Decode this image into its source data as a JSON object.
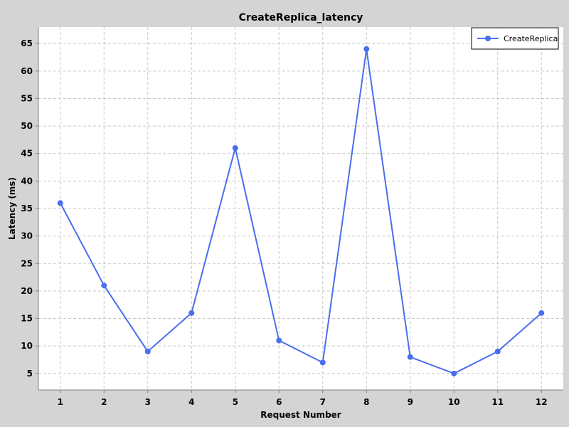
{
  "chart_data": {
    "type": "line",
    "title": "CreateReplica_latency",
    "xlabel": "Request Number",
    "ylabel": "Latency (ms)",
    "categories": [
      "1",
      "2",
      "3",
      "4",
      "5",
      "6",
      "7",
      "8",
      "9",
      "10",
      "11",
      "12"
    ],
    "x": [
      1,
      2,
      3,
      4,
      5,
      6,
      7,
      8,
      9,
      10,
      11,
      12
    ],
    "series": [
      {
        "name": "CreateReplica",
        "values": [
          36,
          21,
          9,
          16,
          46,
          11,
          7,
          64,
          8,
          5,
          9,
          16
        ],
        "color": "#4a6ef0"
      }
    ],
    "yticks": [
      5,
      10,
      15,
      20,
      25,
      30,
      35,
      40,
      45,
      50,
      55,
      60,
      65
    ],
    "ylim": [
      2,
      68
    ],
    "xlim": [
      0.5,
      12.5
    ],
    "grid": true,
    "legend_position": "top-right"
  }
}
